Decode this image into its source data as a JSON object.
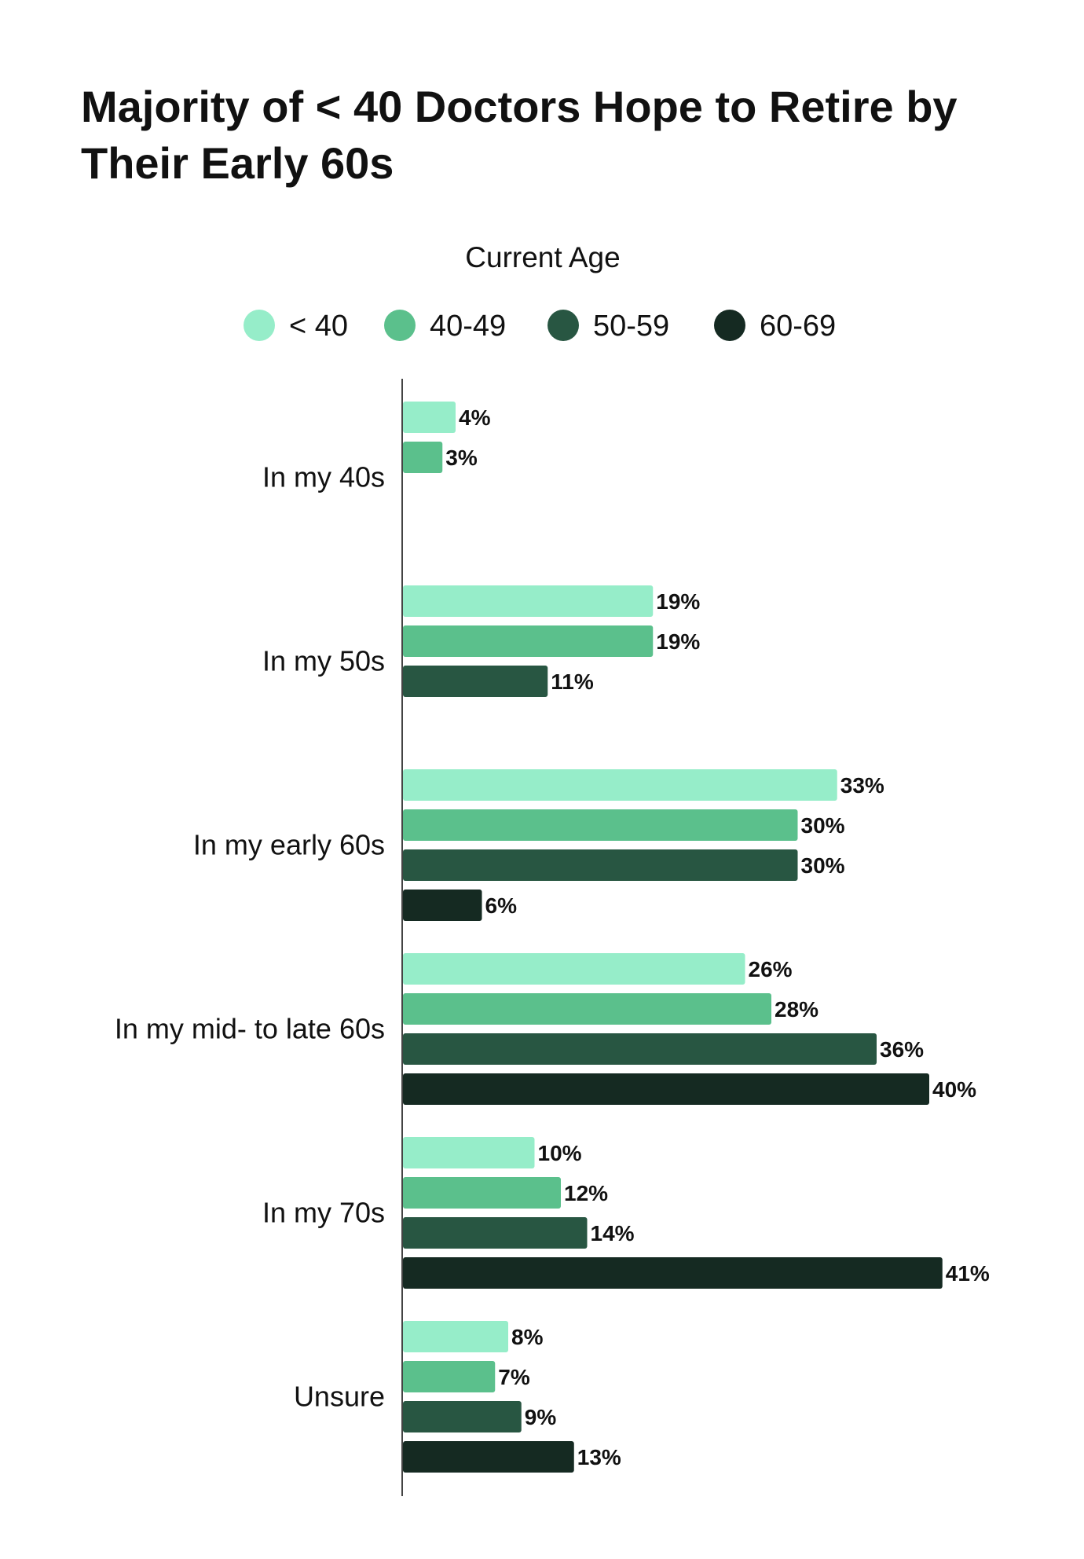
{
  "chart_data": {
    "type": "bar",
    "orientation": "horizontal",
    "title": "Majority of < 40 Doctors Hope to Retire by Their Early 60s",
    "legend_title": "Current Age",
    "legend_placement": "top",
    "grid": false,
    "categories": [
      "In my 40s",
      "In my 50s",
      "In my early 60s",
      "In my mid- to late 60s",
      "In my 70s",
      "Unsure"
    ],
    "series": [
      {
        "name": "< 40",
        "color": "#96EDC9",
        "values": [
          4,
          19,
          33,
          26,
          10,
          8
        ]
      },
      {
        "name": "40-49",
        "color": "#5BC08C",
        "values": [
          3,
          19,
          30,
          28,
          12,
          7
        ]
      },
      {
        "name": "50-59",
        "color": "#285642",
        "values": [
          null,
          11,
          30,
          36,
          14,
          9
        ]
      },
      {
        "name": "60-69",
        "color": "#152A22",
        "values": [
          null,
          null,
          6,
          40,
          41,
          13
        ]
      }
    ],
    "value_suffix": "%",
    "xlim": [
      0,
      45
    ]
  }
}
